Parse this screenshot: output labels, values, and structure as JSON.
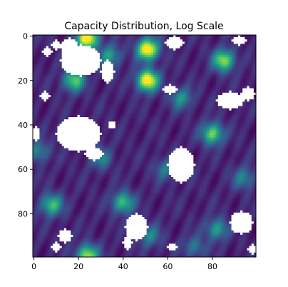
{
  "chart_data": {
    "type": "heatmap",
    "title": "Capacity Distribution, Log Scale",
    "xlabel": "",
    "ylabel": "",
    "grid": false,
    "colormap": "viridis",
    "scale": "log",
    "masked_color": "#ffffff",
    "xlim": [
      0,
      99
    ],
    "ylim": [
      99,
      0
    ],
    "grid_size": [
      100,
      100
    ],
    "x_ticks": [
      {
        "value": 0,
        "label": "0"
      },
      {
        "value": 20,
        "label": "20"
      },
      {
        "value": 40,
        "label": "40"
      },
      {
        "value": 60,
        "label": "60"
      },
      {
        "value": 80,
        "label": "80"
      }
    ],
    "y_ticks": [
      {
        "value": 0,
        "label": "0"
      },
      {
        "value": 20,
        "label": "20"
      },
      {
        "value": 40,
        "label": "40"
      },
      {
        "value": 60,
        "label": "60"
      },
      {
        "value": 80,
        "label": "80"
      }
    ],
    "hotspots": [
      {
        "x": 24,
        "y": 1,
        "level": 1.0
      },
      {
        "x": 51,
        "y": 6,
        "level": 1.0
      },
      {
        "x": 51,
        "y": 20,
        "level": 1.0
      },
      {
        "x": 85,
        "y": 11,
        "level": 0.75
      },
      {
        "x": 18,
        "y": 20,
        "level": 0.65
      },
      {
        "x": 80,
        "y": 44,
        "level": 0.7
      },
      {
        "x": 8,
        "y": 76,
        "level": 0.6
      },
      {
        "x": 40,
        "y": 75,
        "level": 0.6
      },
      {
        "x": 24,
        "y": 99,
        "level": 0.8
      },
      {
        "x": 82,
        "y": 87,
        "level": 0.45
      },
      {
        "x": 34,
        "y": 9,
        "level": 0.45
      },
      {
        "x": 66,
        "y": 28,
        "level": 0.4
      },
      {
        "x": 30,
        "y": 55,
        "level": 0.35
      },
      {
        "x": 52,
        "y": 90,
        "level": 0.35
      },
      {
        "x": 94,
        "y": 64,
        "level": 0.35
      },
      {
        "x": 59,
        "y": 60,
        "level": 0.3
      },
      {
        "x": 2,
        "y": 52,
        "level": 0.35
      },
      {
        "x": 72,
        "y": 95,
        "level": 0.3
      }
    ],
    "masked_regions": [
      {
        "x": 21,
        "y": 11,
        "rx": 9,
        "ry": 7
      },
      {
        "x": 16,
        "y": 5,
        "rx": 4,
        "ry": 4
      },
      {
        "x": 6,
        "y": 7,
        "rx": 2,
        "ry": 2
      },
      {
        "x": 10,
        "y": 4,
        "rx": 2,
        "ry": 2
      },
      {
        "x": 33,
        "y": 16,
        "rx": 3,
        "ry": 5
      },
      {
        "x": 63,
        "y": 3,
        "rx": 4,
        "ry": 3
      },
      {
        "x": 92,
        "y": 2,
        "rx": 3,
        "ry": 2
      },
      {
        "x": 88,
        "y": 29,
        "rx": 6,
        "ry": 4
      },
      {
        "x": 96,
        "y": 26,
        "rx": 3,
        "ry": 3
      },
      {
        "x": 61,
        "y": 24,
        "rx": 3,
        "ry": 2
      },
      {
        "x": 5,
        "y": 27,
        "rx": 2,
        "ry": 2
      },
      {
        "x": 20,
        "y": 44,
        "rx": 10,
        "ry": 8
      },
      {
        "x": 27,
        "y": 53,
        "rx": 4,
        "ry": 3
      },
      {
        "x": 1,
        "y": 44,
        "rx": 1.5,
        "ry": 3
      },
      {
        "x": 66,
        "y": 58,
        "rx": 6,
        "ry": 8
      },
      {
        "x": 35,
        "y": 40,
        "rx": 1.5,
        "ry": 1.5
      },
      {
        "x": 93,
        "y": 84,
        "rx": 5,
        "ry": 5
      },
      {
        "x": 46,
        "y": 86,
        "rx": 5,
        "ry": 6
      },
      {
        "x": 42,
        "y": 93,
        "rx": 2,
        "ry": 3
      },
      {
        "x": 14,
        "y": 90,
        "rx": 3,
        "ry": 3
      },
      {
        "x": 10,
        "y": 95,
        "rx": 2,
        "ry": 2
      },
      {
        "x": 62,
        "y": 95,
        "rx": 2,
        "ry": 1.5
      },
      {
        "x": 98,
        "y": 96,
        "rx": 2,
        "ry": 2
      }
    ]
  }
}
